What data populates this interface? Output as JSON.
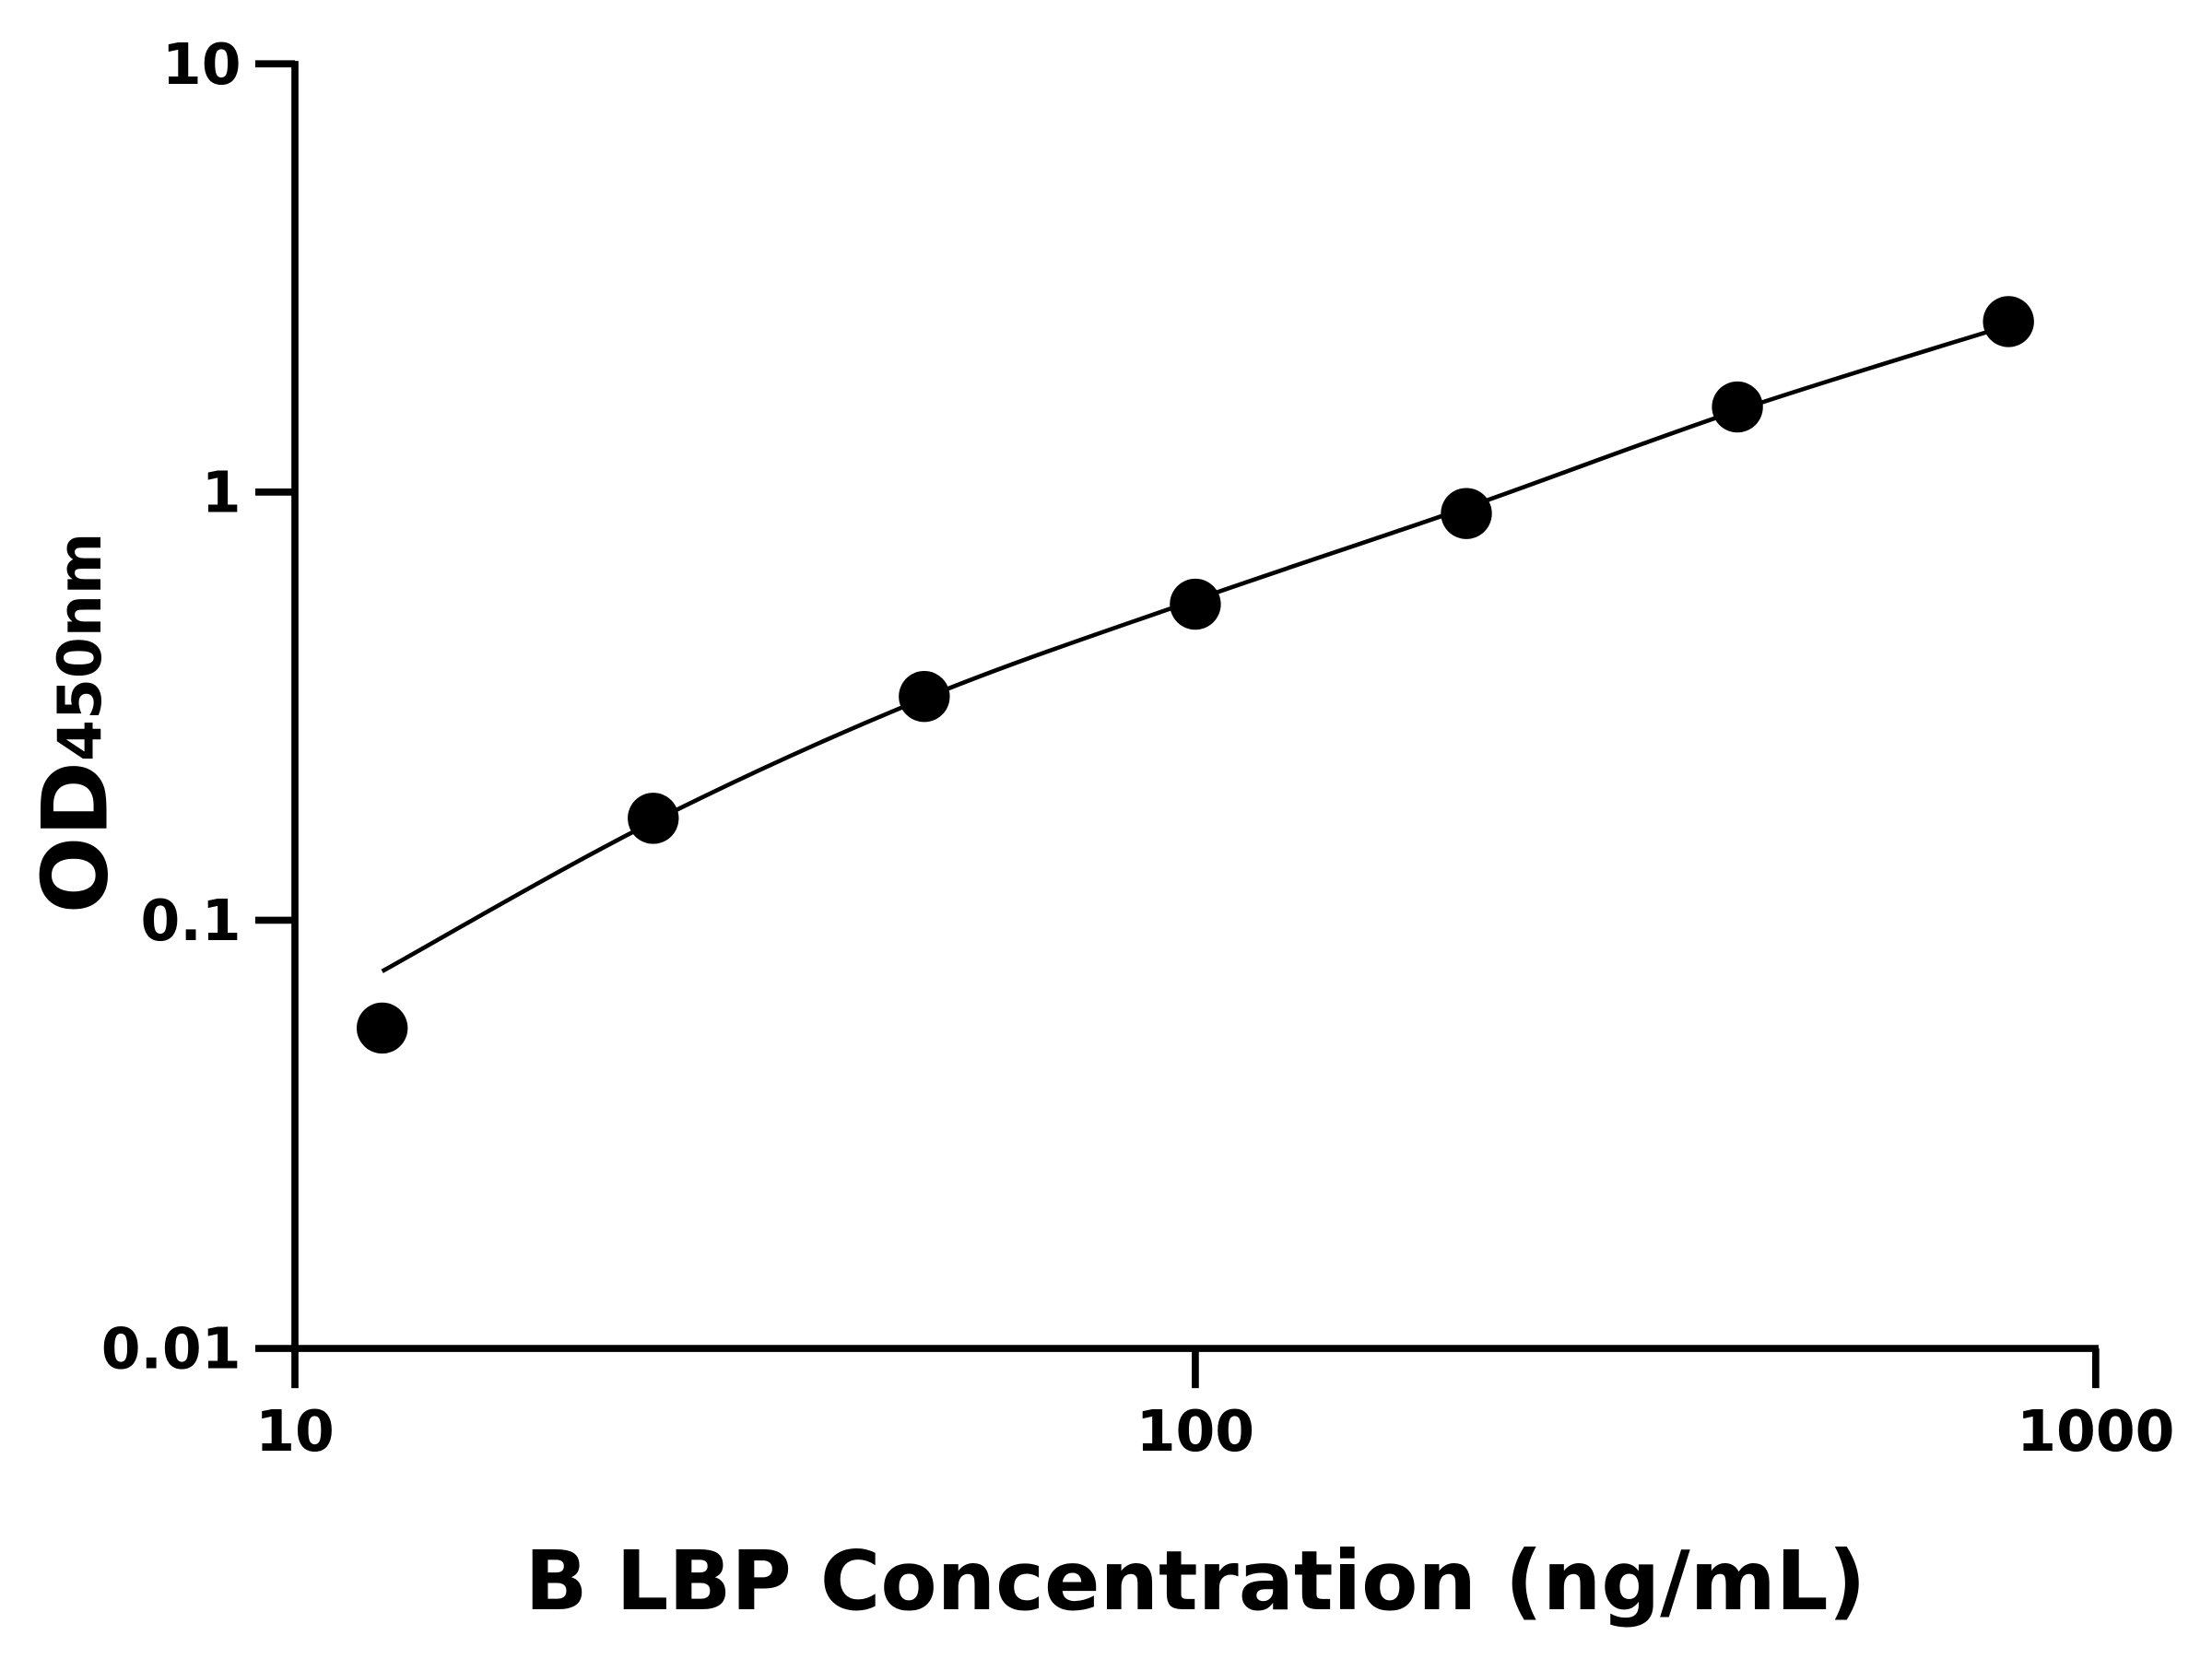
{
  "chart_data": {
    "type": "scatter",
    "title": "",
    "xlabel": "B LBP Concentration (ng/mL)",
    "ylabel": "OD",
    "ylabel_subscript": "450nm",
    "xscale": "log",
    "yscale": "log",
    "xlim": [
      10,
      1000
    ],
    "ylim": [
      0.01,
      10
    ],
    "xticks": [
      10,
      100,
      1000
    ],
    "xtick_labels": [
      "10",
      "100",
      "1000"
    ],
    "yticks": [
      0.01,
      0.1,
      1,
      10
    ],
    "ytick_labels": [
      "0.01",
      "0.1",
      "1",
      "10"
    ],
    "grid": false,
    "legend": "none",
    "point_color": "#000000",
    "points": {
      "x": [
        12.5,
        25,
        50,
        100,
        200,
        400,
        800
      ],
      "y": [
        0.056,
        0.173,
        0.333,
        0.547,
        0.891,
        1.58,
        2.5
      ]
    },
    "fit_curve": {
      "x": [
        12.5,
        25,
        50,
        100,
        200,
        400,
        800
      ],
      "y": [
        0.076,
        0.17,
        0.33,
        0.56,
        0.92,
        1.55,
        2.45
      ]
    }
  }
}
